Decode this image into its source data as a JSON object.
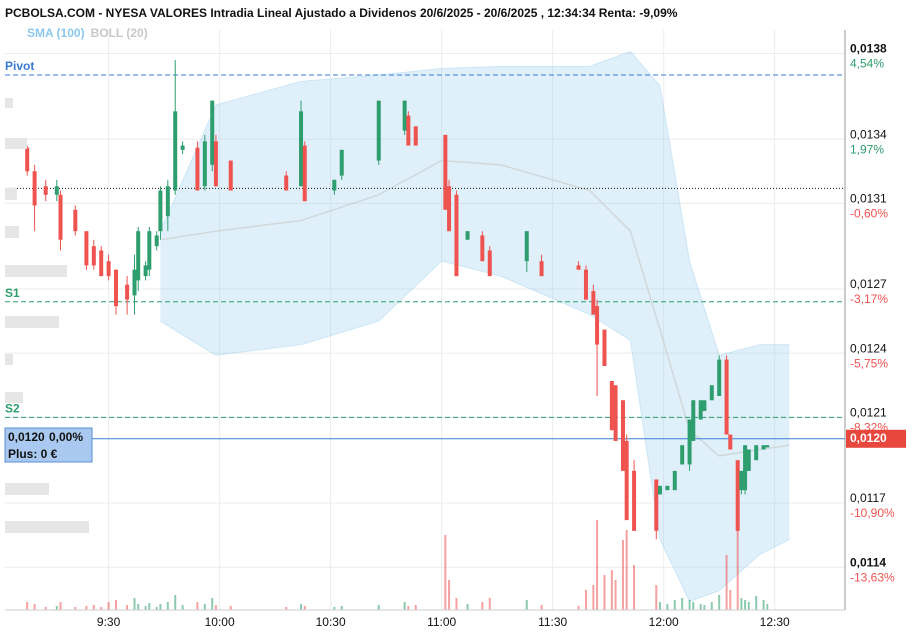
{
  "chart_data": {
    "type": "candlestick",
    "title": "PCBOLSA.COM - NYESA VALORES Intradia Lineal Ajustado a Dividenos 20/6/2025 - 20/6/2025 , 12:34:34 Renta: -9,09%",
    "indicators": [
      {
        "name": "SMA (100)",
        "color": "#8cc8ee"
      },
      {
        "name": "BOLL (20)",
        "color": "#c8c8c8"
      }
    ],
    "up_color": "#2e9e6e",
    "down_color": "#ef5350",
    "xlim": [
      542,
      769
    ],
    "xticks": [
      {
        "value": 570,
        "label": "9:30"
      },
      {
        "value": 600,
        "label": "10:00"
      },
      {
        "value": 630,
        "label": "10:30"
      },
      {
        "value": 660,
        "label": "11:00"
      },
      {
        "value": 690,
        "label": "11:30"
      },
      {
        "value": 720,
        "label": "12:00"
      },
      {
        "value": 750,
        "label": "12:30"
      }
    ],
    "ylim": [
      0.0112,
      0.01391
    ],
    "yticks": [
      {
        "value": 0.0138,
        "label": "0,0138"
      },
      {
        "value": 0.0134,
        "label": "0,0134"
      },
      {
        "value": 0.0131,
        "label": "0,0131"
      },
      {
        "value": 0.0127,
        "label": "0,0127"
      },
      {
        "value": 0.0124,
        "label": "0,0124"
      },
      {
        "value": 0.0121,
        "label": "0,0121"
      },
      {
        "value": 0.0117,
        "label": "0,0117"
      },
      {
        "value": 0.0114,
        "label": "0,0114"
      }
    ],
    "ytick_changes": [
      {
        "value": 4.54,
        "label": "4,54%"
      },
      {
        "value": 1.97,
        "label": "1,97%"
      },
      {
        "value": -0.6,
        "label": "-0,60%"
      },
      {
        "value": -3.17,
        "label": "-3,17%"
      },
      {
        "value": -5.75,
        "label": "-5,75%"
      },
      {
        "value": -8.32,
        "label": "-8,32%"
      },
      {
        "value": -10.9,
        "label": "-10,90%"
      },
      {
        "value": -13.63,
        "label": "-13,63%"
      }
    ],
    "grid": true,
    "levels": [
      {
        "name": "Pivot",
        "value": 0.0137,
        "color": "#3a7bd5"
      },
      {
        "name": "S1",
        "value": 0.01264,
        "color": "#2e9e6e"
      },
      {
        "name": "S2",
        "value": 0.0121,
        "color": "#2e9e6e"
      }
    ],
    "reference_line": 0.01317,
    "last_price": {
      "value": 0.012,
      "label": "0,0120"
    },
    "info_box": {
      "change": "0,00%",
      "plus": "Plus: 0 €"
    },
    "x": [
      548,
      550,
      553,
      556,
      557,
      561,
      564,
      566,
      568,
      570,
      572,
      575,
      577,
      578,
      580,
      581,
      583,
      584,
      586,
      588,
      590,
      594,
      596,
      598,
      599,
      603,
      618,
      622,
      623,
      631,
      633,
      643,
      650,
      651,
      653,
      661,
      662,
      664,
      667,
      671,
      673,
      683,
      687,
      697,
      699,
      701,
      702,
      704,
      706,
      707,
      709,
      710,
      712,
      718,
      719,
      721,
      723,
      725,
      727,
      728,
      730,
      731,
      733,
      735,
      737,
      738,
      740,
      741,
      742,
      743,
      745,
      747,
      748
    ],
    "open": [
      0.01336,
      0.01325,
      0.01318,
      0.01314,
      0.01314,
      0.01307,
      0.01297,
      0.0129,
      0.01288,
      0.01283,
      0.01279,
      0.01272,
      0.01267,
      0.01274,
      0.01276,
      0.01279,
      0.0129,
      0.01297,
      0.01304,
      0.01316,
      0.01335,
      0.01336,
      0.01318,
      0.01328,
      0.01339,
      0.0133,
      0.01323,
      0.01318,
      0.01337,
      0.01316,
      0.01323,
      0.0133,
      0.01344,
      0.01351,
      0.01346,
      0.01342,
      0.01318,
      0.01314,
      0.01293,
      0.01295,
      0.01288,
      0.01283,
      0.01283,
      0.01281,
      0.01279,
      0.01269,
      0.01262,
      0.01251,
      0.01227,
      0.01225,
      0.01218,
      0.01199,
      0.01185,
      0.01181,
      0.01174,
      0.01176,
      0.01176,
      0.01188,
      0.01188,
      0.01199,
      0.01209,
      0.01213,
      0.01218,
      0.0122,
      0.01237,
      0.01202,
      0.0119,
      0.01176,
      0.01176,
      0.01185,
      0.0119,
      0.01195,
      0.01196
    ],
    "high": [
      0.01337,
      0.01328,
      0.01321,
      0.01321,
      0.01316,
      0.01309,
      0.01297,
      0.01293,
      0.0129,
      0.01286,
      0.01279,
      0.01276,
      0.01286,
      0.01299,
      0.01283,
      0.01299,
      0.01297,
      0.01318,
      0.01321,
      0.01377,
      0.01339,
      0.01339,
      0.01342,
      0.01358,
      0.01342,
      0.0133,
      0.01325,
      0.01358,
      0.01339,
      0.01321,
      0.01335,
      0.01358,
      0.01358,
      0.01353,
      0.01346,
      0.01342,
      0.01321,
      0.01316,
      0.01297,
      0.01297,
      0.0129,
      0.01297,
      0.01286,
      0.01283,
      0.01281,
      0.01272,
      0.01265,
      0.01251,
      0.01227,
      0.01225,
      0.01218,
      0.01202,
      0.0119,
      0.01181,
      0.01178,
      0.01178,
      0.01185,
      0.01197,
      0.01209,
      0.01218,
      0.01218,
      0.01218,
      0.01225,
      0.01239,
      0.01239,
      0.01202,
      0.0119,
      0.01185,
      0.01197,
      0.01195,
      0.01197,
      0.01197,
      0.01197
    ],
    "low": [
      0.01323,
      0.01297,
      0.01311,
      0.01311,
      0.01288,
      0.01295,
      0.01279,
      0.01279,
      0.01276,
      0.01274,
      0.01258,
      0.01258,
      0.01258,
      0.01269,
      0.01274,
      0.01276,
      0.01288,
      0.01293,
      0.01297,
      0.01314,
      0.01333,
      0.01316,
      0.01316,
      0.01325,
      0.01318,
      0.01316,
      0.01316,
      0.01318,
      0.01311,
      0.01314,
      0.01321,
      0.01328,
      0.01342,
      0.01337,
      0.01337,
      0.01307,
      0.01297,
      0.01276,
      0.01293,
      0.01283,
      0.01276,
      0.01278,
      0.01276,
      0.01279,
      0.01265,
      0.01258,
      0.0122,
      0.01234,
      0.01204,
      0.01199,
      0.01185,
      0.01162,
      0.01157,
      0.01153,
      0.01174,
      0.01176,
      0.01176,
      0.01188,
      0.01185,
      0.01199,
      0.01209,
      0.01213,
      0.01218,
      0.0122,
      0.01202,
      0.01195,
      0.01157,
      0.01174,
      0.01174,
      0.01185,
      0.0119,
      0.01195,
      0.01196
    ],
    "close": [
      0.01325,
      0.01309,
      0.01314,
      0.01318,
      0.01293,
      0.01297,
      0.01281,
      0.01281,
      0.01276,
      0.01276,
      0.01262,
      0.01265,
      0.01279,
      0.01297,
      0.01281,
      0.01297,
      0.01295,
      0.01316,
      0.01318,
      0.01353,
      0.01337,
      0.01316,
      0.01339,
      0.01358,
      0.01318,
      0.01316,
      0.01316,
      0.01353,
      0.01311,
      0.01321,
      0.01335,
      0.01358,
      0.01358,
      0.01337,
      0.01337,
      0.01307,
      0.01297,
      0.01276,
      0.01297,
      0.01283,
      0.01276,
      0.01297,
      0.01276,
      0.01279,
      0.01265,
      0.01258,
      0.01244,
      0.01234,
      0.01204,
      0.01199,
      0.01185,
      0.01162,
      0.01157,
      0.01157,
      0.01178,
      0.01178,
      0.01185,
      0.01197,
      0.01209,
      0.01218,
      0.01218,
      0.01218,
      0.01225,
      0.01237,
      0.01202,
      0.01195,
      0.01157,
      0.01185,
      0.01197,
      0.01195,
      0.01197,
      0.01197,
      0.01197
    ],
    "volume": [
      8,
      6,
      3,
      4,
      8,
      3,
      4,
      5,
      3,
      8,
      10,
      5,
      12,
      6,
      4,
      7,
      3,
      6,
      8,
      15,
      5,
      8,
      6,
      12,
      5,
      4,
      3,
      6,
      4,
      3,
      4,
      5,
      8,
      4,
      5,
      75,
      30,
      12,
      6,
      8,
      12,
      10,
      5,
      4,
      20,
      25,
      90,
      35,
      40,
      30,
      70,
      80,
      45,
      25,
      8,
      6,
      10,
      12,
      10,
      8,
      6,
      5,
      8,
      15,
      55,
      20,
      90,
      12,
      10,
      8,
      14,
      10,
      6
    ],
    "bollinger": {
      "x": [
        584,
        599,
        622,
        643,
        660,
        676,
        700,
        711,
        719,
        727,
        735,
        746,
        754
      ],
      "upper": [
        0.01297,
        0.01356,
        0.01367,
        0.0137,
        0.01373,
        0.01374,
        0.01374,
        0.01381,
        0.01365,
        0.01283,
        0.01239,
        0.01244,
        0.01244
      ],
      "middle": [
        0.01293,
        0.01297,
        0.01302,
        0.01314,
        0.0133,
        0.01328,
        0.01316,
        0.01297,
        0.01251,
        0.01204,
        0.01192,
        0.01195,
        0.01197
      ],
      "lower": [
        0.01255,
        0.01239,
        0.01244,
        0.01255,
        0.01283,
        0.01276,
        0.01258,
        0.01246,
        0.01153,
        0.01124,
        0.01129,
        0.01146,
        0.01153
      ]
    }
  }
}
